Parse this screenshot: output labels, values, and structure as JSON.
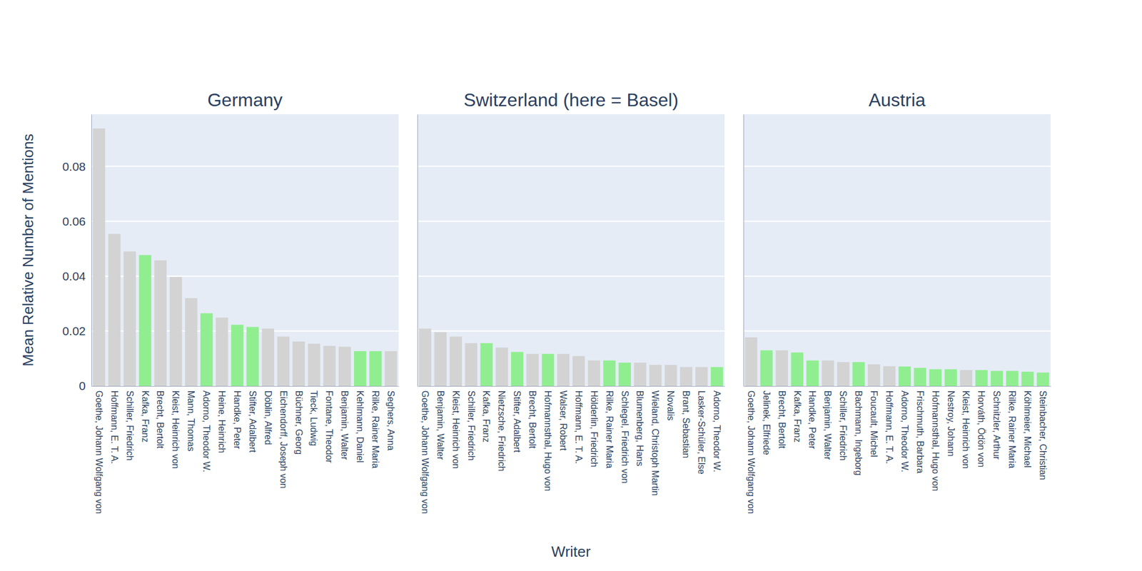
{
  "chart_data": [
    {
      "type": "bar",
      "title": "Germany",
      "y_label": "Mean Relative Number of Mentions",
      "categories": [
        "Goethe, Johann Wolfgang von",
        "Hoffmann, E. T. A.",
        "Schiller, Friedrich",
        "Kafka, Franz",
        "Brecht, Bertolt",
        "Kleist, Heinrich von",
        "Mann, Thomas",
        "Adorno, Theodor W.",
        "Heine, Heinrich",
        "Handke, Peter",
        "Stifter, Adalbert",
        "Döblin, Alfred",
        "Eichendorff, Joseph von",
        "Büchner, Georg",
        "Tieck, Ludwig",
        "Fontane, Theodor",
        "Benjamin, Walter",
        "Kehlmann, Daniel",
        "Rilke, Rainer Maria",
        "Seghers, Anna"
      ],
      "values": [
        0.0938,
        0.0554,
        0.049,
        0.0477,
        0.0458,
        0.0397,
        0.032,
        0.0265,
        0.0249,
        0.0223,
        0.0215,
        0.0209,
        0.018,
        0.0162,
        0.0154,
        0.0146,
        0.0143,
        0.0127,
        0.0127,
        0.0127
      ],
      "colors": [
        "#d3d3d3",
        "#d3d3d3",
        "#d3d3d3",
        "#90ee90",
        "#d3d3d3",
        "#d3d3d3",
        "#d3d3d3",
        "#90ee90",
        "#d3d3d3",
        "#90ee90",
        "#90ee90",
        "#d3d3d3",
        "#d3d3d3",
        "#d3d3d3",
        "#d3d3d3",
        "#d3d3d3",
        "#d3d3d3",
        "#90ee90",
        "#90ee90",
        "#d3d3d3"
      ],
      "ylim": [
        0,
        0.099
      ],
      "yticks": [
        0,
        0.02,
        0.04,
        0.06,
        0.08
      ],
      "grid": true
    },
    {
      "type": "bar",
      "title": "Switzerland (here = Basel)",
      "x_label": "Writer",
      "categories": [
        "Goethe, Johann Wolfgang von",
        "Benjamin, Walter",
        "Kleist, Heinrich von",
        "Schiller, Friedrich",
        "Kafka, Franz",
        "Nietzsche, Friedrich",
        "Stifter, Adalbert",
        "Brecht, Bertolt",
        "Hofmannsthal, Hugo von",
        "Walser, Robert",
        "Hoffmann, E. T. A.",
        "Hölderlin, Friedrich",
        "Rilke, Rainer Maria",
        "Schlegel, Friedrich von",
        "Blumenberg, Hans",
        "Wieland, Christoph Martin",
        "Novalis",
        "Brant, Sebastian",
        "Lasker-Schüler, Else",
        "Adorno, Theodor W."
      ],
      "values": [
        0.0209,
        0.0196,
        0.018,
        0.0156,
        0.0156,
        0.014,
        0.0124,
        0.0117,
        0.0117,
        0.0117,
        0.0109,
        0.0093,
        0.0093,
        0.0085,
        0.0085,
        0.0077,
        0.0077,
        0.0069,
        0.0069,
        0.0069
      ],
      "colors": [
        "#d3d3d3",
        "#d3d3d3",
        "#d3d3d3",
        "#d3d3d3",
        "#90ee90",
        "#d3d3d3",
        "#90ee90",
        "#d3d3d3",
        "#90ee90",
        "#d3d3d3",
        "#d3d3d3",
        "#d3d3d3",
        "#90ee90",
        "#90ee90",
        "#d3d3d3",
        "#d3d3d3",
        "#d3d3d3",
        "#d3d3d3",
        "#d3d3d3",
        "#90ee90"
      ],
      "ylim": [
        0,
        0.099
      ],
      "yticks": [
        0,
        0.02,
        0.04,
        0.06,
        0.08
      ],
      "grid": true,
      "tick_labels": "x"
    },
    {
      "type": "bar",
      "title": "Austria",
      "categories": [
        "Goethe, Johann Wolfgang von",
        "Jelinek, Elfriede",
        "Brecht, Bertolt",
        "Kafka, Franz",
        "Handke, Peter",
        "Benjamin, Walter",
        "Schiller, Friedrich",
        "Bachmann, Ingeborg",
        "Foucault, Michel",
        "Hoffmann, E. T. A.",
        "Adorno, Theodor W.",
        "Frischmuth, Barbara",
        "Hofmannsthal, Hugo von",
        "Nestroy, Johann",
        "Kleist, Heinrich von",
        "Horváth, Ödön von",
        "Schnitzler, Arthur",
        "Rilke, Rainer Maria",
        "Köhlmeier, Michael",
        "Steinbacher, Christian"
      ],
      "values": [
        0.0177,
        0.013,
        0.013,
        0.0122,
        0.0093,
        0.0093,
        0.0087,
        0.0087,
        0.0079,
        0.0072,
        0.0071,
        0.0066,
        0.0061,
        0.0061,
        0.0058,
        0.0058,
        0.0055,
        0.0055,
        0.0052,
        0.0049
      ],
      "colors": [
        "#d3d3d3",
        "#90ee90",
        "#d3d3d3",
        "#90ee90",
        "#90ee90",
        "#d3d3d3",
        "#d3d3d3",
        "#90ee90",
        "#d3d3d3",
        "#d3d3d3",
        "#90ee90",
        "#90ee90",
        "#90ee90",
        "#90ee90",
        "#d3d3d3",
        "#90ee90",
        "#90ee90",
        "#90ee90",
        "#90ee90",
        "#90ee90"
      ],
      "ylim": [
        0,
        0.099
      ],
      "yticks": [
        0,
        0.02,
        0.04,
        0.06,
        0.08
      ],
      "grid": true,
      "tick_labels": "x"
    }
  ]
}
